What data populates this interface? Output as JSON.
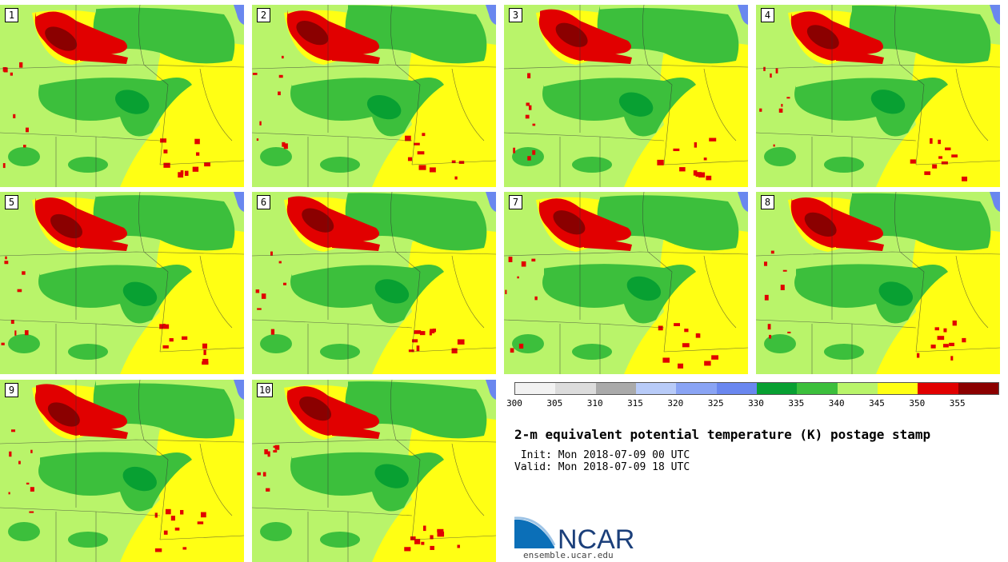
{
  "panels": [
    {
      "label": "1"
    },
    {
      "label": "2"
    },
    {
      "label": "3"
    },
    {
      "label": "4"
    },
    {
      "label": "5"
    },
    {
      "label": "6"
    },
    {
      "label": "7"
    },
    {
      "label": "8"
    },
    {
      "label": "9"
    },
    {
      "label": "10"
    }
  ],
  "colorbar": {
    "colors": [
      "#f2f2f2",
      "#dcdcdc",
      "#aaaaaa",
      "#b8cbf8",
      "#8aa4f4",
      "#6a87ef",
      "#08a032",
      "#3cbf3c",
      "#b9f46a",
      "#ffff14",
      "#e10000",
      "#8b0000"
    ],
    "ticks": [
      "300",
      "305",
      "310",
      "315",
      "320",
      "325",
      "330",
      "335",
      "340",
      "345",
      "350",
      "355"
    ]
  },
  "title": "2-m equivalent potential temperature (K) postage stamp",
  "init": " Init: Mon 2018-07-09 00 UTC",
  "valid": "Valid: Mon 2018-07-09 18 UTC",
  "logo": {
    "name": "NCAR",
    "url": "ensemble.ucar.edu"
  },
  "colors": {
    "light_green": "#b9f46a",
    "green": "#3cbf3c",
    "dark_green": "#08a032",
    "yellow": "#ffff14",
    "red": "#e10000",
    "dark_red": "#8b0000",
    "lake": "#6a87ef"
  }
}
